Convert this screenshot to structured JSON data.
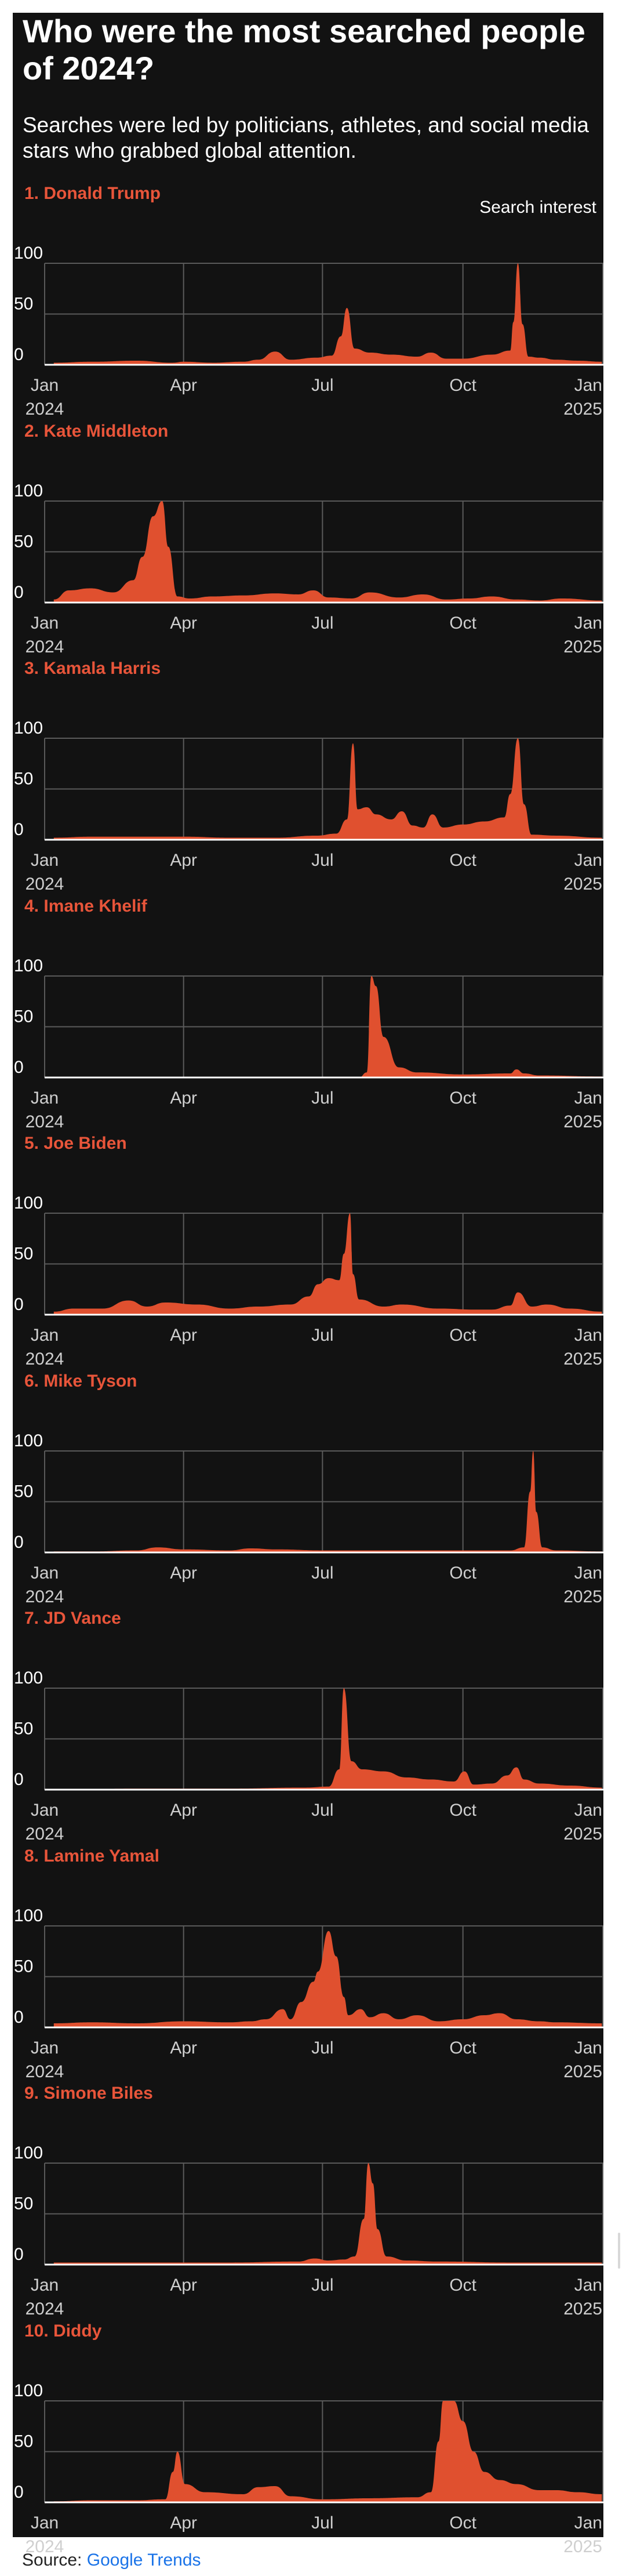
{
  "header": {
    "title": "Who were the most searched people of 2024?",
    "subtitle": "Searches were led by politicians, athletes, and social media stars who grabbed global attention.",
    "legend_label": "Search interest"
  },
  "source": {
    "label": "Source:",
    "link_text": "Google Trends"
  },
  "colors": {
    "area_fill": "#e0502f",
    "label_color": "#e8553a",
    "background": "#121212",
    "grid": "#5a5a5a",
    "baseline": "#ffffff"
  },
  "axes": {
    "y_ticks": [
      "100",
      "50",
      "0"
    ],
    "y_range": [
      0,
      100
    ],
    "x_range": [
      "2024-01-01",
      "2025-01-01"
    ],
    "x_ticks": [
      {
        "line1": "Jan",
        "line2": "2024",
        "date": "2024-01-01"
      },
      {
        "line1": "Apr",
        "line2": "",
        "date": "2024-04-01"
      },
      {
        "line1": "Jul",
        "line2": "",
        "date": "2024-07-01"
      },
      {
        "line1": "Oct",
        "line2": "",
        "date": "2024-10-01"
      },
      {
        "line1": "Jan",
        "line2": "2025",
        "date": "2025-01-01"
      }
    ]
  },
  "chart_data": [
    {
      "type": "area",
      "label": "1. Donald Trump",
      "ylim": [
        0,
        100
      ],
      "x": [
        "2024-01-07",
        "2024-02-01",
        "2024-03-01",
        "2024-03-25",
        "2024-04-01",
        "2024-04-20",
        "2024-05-10",
        "2024-05-20",
        "2024-05-31",
        "2024-06-10",
        "2024-06-27",
        "2024-07-07",
        "2024-07-13",
        "2024-07-17",
        "2024-07-22",
        "2024-08-01",
        "2024-08-15",
        "2024-09-01",
        "2024-09-10",
        "2024-09-20",
        "2024-10-01",
        "2024-10-20",
        "2024-11-01",
        "2024-11-03",
        "2024-11-06",
        "2024-11-09",
        "2024-11-13",
        "2024-11-20",
        "2024-12-01",
        "2024-12-15",
        "2024-12-31"
      ],
      "y": [
        2,
        3,
        4,
        2,
        3,
        2,
        3,
        5,
        13,
        5,
        7,
        9,
        28,
        56,
        16,
        12,
        10,
        8,
        12,
        6,
        6,
        10,
        14,
        42,
        100,
        40,
        8,
        7,
        5,
        4,
        3
      ]
    },
    {
      "type": "area",
      "label": "2. Kate Middleton",
      "ylim": [
        0,
        100
      ],
      "x": [
        "2024-01-07",
        "2024-01-17",
        "2024-01-31",
        "2024-02-15",
        "2024-02-28",
        "2024-03-05",
        "2024-03-12",
        "2024-03-18",
        "2024-03-22",
        "2024-03-28",
        "2024-04-05",
        "2024-04-20",
        "2024-05-10",
        "2024-05-31",
        "2024-06-15",
        "2024-06-25",
        "2024-07-05",
        "2024-07-20",
        "2024-08-01",
        "2024-08-20",
        "2024-09-05",
        "2024-09-20",
        "2024-10-05",
        "2024-10-20",
        "2024-11-05",
        "2024-11-20",
        "2024-12-05",
        "2024-12-31"
      ],
      "y": [
        3,
        12,
        14,
        10,
        22,
        45,
        85,
        100,
        55,
        6,
        4,
        6,
        7,
        9,
        8,
        12,
        5,
        4,
        10,
        5,
        8,
        3,
        4,
        6,
        3,
        2,
        4,
        2
      ]
    },
    {
      "type": "area",
      "label": "3. Kamala Harris",
      "ylim": [
        0,
        100
      ],
      "x": [
        "2024-01-07",
        "2024-02-01",
        "2024-03-01",
        "2024-04-01",
        "2024-05-01",
        "2024-06-01",
        "2024-06-27",
        "2024-07-10",
        "2024-07-17",
        "2024-07-21",
        "2024-07-24",
        "2024-07-30",
        "2024-08-05",
        "2024-08-15",
        "2024-08-22",
        "2024-08-29",
        "2024-09-05",
        "2024-09-11",
        "2024-09-18",
        "2024-10-01",
        "2024-10-15",
        "2024-10-28",
        "2024-11-01",
        "2024-11-06",
        "2024-11-10",
        "2024-11-15",
        "2024-12-01",
        "2024-12-31"
      ],
      "y": [
        2,
        3,
        3,
        3,
        2,
        2,
        4,
        6,
        20,
        95,
        30,
        32,
        25,
        20,
        28,
        14,
        12,
        25,
        12,
        15,
        18,
        22,
        45,
        100,
        35,
        5,
        4,
        2
      ]
    },
    {
      "type": "area",
      "label": "4. Imane Khelif",
      "ylim": [
        0,
        100
      ],
      "x": [
        "2024-01-07",
        "2024-04-01",
        "2024-07-01",
        "2024-07-25",
        "2024-07-30",
        "2024-08-02",
        "2024-08-05",
        "2024-08-10",
        "2024-08-20",
        "2024-09-01",
        "2024-10-01",
        "2024-11-01",
        "2024-11-05",
        "2024-11-10",
        "2024-11-20",
        "2024-12-31"
      ],
      "y": [
        0,
        0,
        0,
        0,
        5,
        100,
        90,
        40,
        10,
        5,
        3,
        4,
        8,
        4,
        2,
        1
      ]
    },
    {
      "type": "area",
      "label": "5. Joe Biden",
      "ylim": [
        0,
        100
      ],
      "x": [
        "2024-01-07",
        "2024-01-20",
        "2024-02-08",
        "2024-02-25",
        "2024-03-08",
        "2024-03-20",
        "2024-04-10",
        "2024-05-01",
        "2024-05-20",
        "2024-06-10",
        "2024-06-22",
        "2024-06-28",
        "2024-07-05",
        "2024-07-12",
        "2024-07-15",
        "2024-07-19",
        "2024-07-21",
        "2024-07-25",
        "2024-08-10",
        "2024-08-22",
        "2024-09-15",
        "2024-10-10",
        "2024-10-20",
        "2024-11-01",
        "2024-11-06",
        "2024-11-15",
        "2024-11-25",
        "2024-12-10",
        "2024-12-31"
      ],
      "y": [
        3,
        6,
        6,
        14,
        8,
        12,
        10,
        6,
        8,
        10,
        18,
        30,
        36,
        34,
        60,
        100,
        40,
        15,
        8,
        10,
        6,
        5,
        5,
        9,
        22,
        8,
        10,
        6,
        3
      ]
    },
    {
      "type": "area",
      "label": "6. Mike Tyson",
      "ylim": [
        0,
        100
      ],
      "x": [
        "2024-01-07",
        "2024-02-01",
        "2024-03-01",
        "2024-03-15",
        "2024-04-01",
        "2024-05-01",
        "2024-05-15",
        "2024-06-01",
        "2024-07-01",
        "2024-08-01",
        "2024-09-01",
        "2024-10-01",
        "2024-11-01",
        "2024-11-10",
        "2024-11-14",
        "2024-11-16",
        "2024-11-18",
        "2024-11-22",
        "2024-12-01",
        "2024-12-31"
      ],
      "y": [
        1,
        1,
        2,
        5,
        3,
        2,
        4,
        3,
        2,
        2,
        2,
        2,
        2,
        5,
        60,
        100,
        40,
        5,
        2,
        1
      ]
    },
    {
      "type": "area",
      "label": "7. JD Vance",
      "ylim": [
        0,
        100
      ],
      "x": [
        "2024-01-07",
        "2024-03-01",
        "2024-05-01",
        "2024-06-20",
        "2024-07-05",
        "2024-07-12",
        "2024-07-15",
        "2024-07-20",
        "2024-07-27",
        "2024-08-10",
        "2024-08-25",
        "2024-09-10",
        "2024-09-25",
        "2024-10-02",
        "2024-10-08",
        "2024-10-20",
        "2024-10-30",
        "2024-11-05",
        "2024-11-10",
        "2024-11-20",
        "2024-12-10",
        "2024-12-31"
      ],
      "y": [
        0,
        1,
        1,
        2,
        3,
        20,
        100,
        28,
        20,
        18,
        12,
        10,
        8,
        18,
        5,
        6,
        14,
        22,
        10,
        6,
        4,
        2
      ]
    },
    {
      "type": "area",
      "label": "8. Lamine Yamal",
      "ylim": [
        0,
        100
      ],
      "x": [
        "2024-01-07",
        "2024-02-01",
        "2024-03-01",
        "2024-04-01",
        "2024-05-01",
        "2024-05-15",
        "2024-05-25",
        "2024-06-05",
        "2024-06-10",
        "2024-06-17",
        "2024-06-25",
        "2024-06-28",
        "2024-07-05",
        "2024-07-10",
        "2024-07-15",
        "2024-07-18",
        "2024-07-26",
        "2024-08-01",
        "2024-08-10",
        "2024-08-20",
        "2024-09-01",
        "2024-09-15",
        "2024-10-01",
        "2024-10-15",
        "2024-10-25",
        "2024-11-05",
        "2024-11-20",
        "2024-12-01",
        "2024-12-31"
      ],
      "y": [
        4,
        5,
        4,
        6,
        5,
        6,
        8,
        18,
        8,
        25,
        45,
        55,
        95,
        70,
        30,
        12,
        18,
        10,
        14,
        8,
        12,
        6,
        8,
        12,
        14,
        8,
        6,
        5,
        4
      ]
    },
    {
      "type": "area",
      "label": "9. Simone Biles",
      "ylim": [
        0,
        100
      ],
      "x": [
        "2024-01-07",
        "2024-03-01",
        "2024-05-01",
        "2024-06-15",
        "2024-06-26",
        "2024-07-05",
        "2024-07-15",
        "2024-07-22",
        "2024-07-28",
        "2024-07-31",
        "2024-08-03",
        "2024-08-06",
        "2024-08-12",
        "2024-08-25",
        "2024-09-15",
        "2024-11-01",
        "2024-12-31"
      ],
      "y": [
        2,
        2,
        2,
        3,
        6,
        4,
        5,
        8,
        45,
        100,
        80,
        35,
        8,
        4,
        3,
        2,
        2
      ]
    },
    {
      "type": "area",
      "label": "10. Diddy",
      "ylim": [
        0,
        100
      ],
      "x": [
        "2024-01-07",
        "2024-02-01",
        "2024-03-01",
        "2024-03-20",
        "2024-03-25",
        "2024-03-28",
        "2024-04-02",
        "2024-04-15",
        "2024-05-10",
        "2024-05-20",
        "2024-05-31",
        "2024-06-10",
        "2024-07-01",
        "2024-08-01",
        "2024-09-01",
        "2024-09-10",
        "2024-09-15",
        "2024-09-18",
        "2024-09-25",
        "2024-10-01",
        "2024-10-08",
        "2024-10-15",
        "2024-10-25",
        "2024-11-05",
        "2024-11-20",
        "2024-12-01",
        "2024-12-15",
        "2024-12-31"
      ],
      "y": [
        1,
        2,
        2,
        3,
        30,
        50,
        18,
        10,
        8,
        15,
        16,
        6,
        3,
        4,
        5,
        10,
        60,
        100,
        100,
        80,
        50,
        30,
        22,
        18,
        12,
        12,
        10,
        8
      ]
    }
  ]
}
